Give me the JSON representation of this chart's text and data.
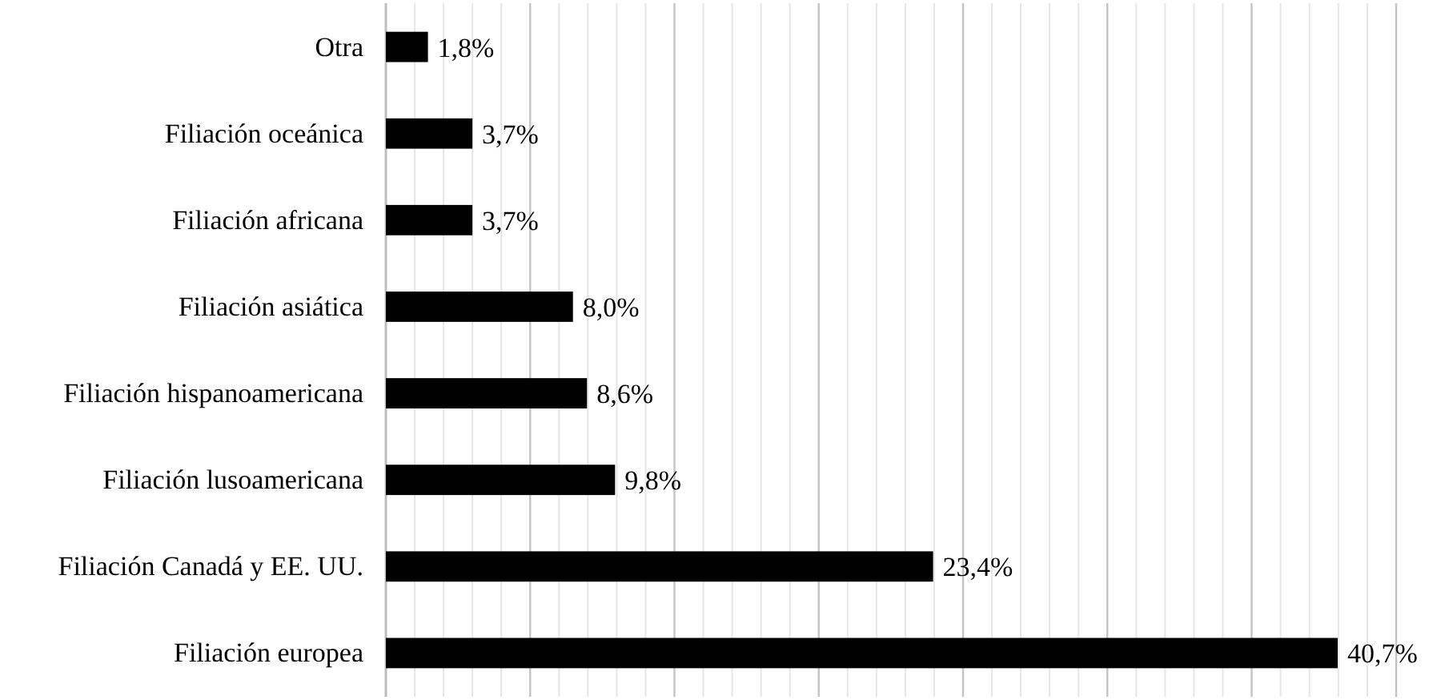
{
  "chart_data": {
    "type": "bar",
    "orientation": "horizontal",
    "categories": [
      "Otra",
      "Filiación oceánica",
      "Filiación africana",
      "Filiación asiática",
      "Filiación hispanoamericana",
      "Filiación lusoamericana",
      "Filiación Canadá y EE. UU.",
      "Filiación europea"
    ],
    "values": [
      1.8,
      3.7,
      3.7,
      8.0,
      8.6,
      9.8,
      23.4,
      40.7
    ],
    "value_labels": [
      "1,8%",
      "3,7%",
      "3,7%",
      "8,0%",
      "8,6%",
      "9,8%",
      "23,4%",
      "40,7%"
    ],
    "color": "#000000",
    "xlim": [
      0,
      43.2
    ],
    "xticks": [
      {
        "value": 6.17,
        "label": null
      },
      {
        "value": 12.34,
        "label": null
      },
      {
        "value": 18.51,
        "label": null
      },
      {
        "value": 24.68,
        "label": null
      },
      {
        "value": 30.85,
        "label": null
      },
      {
        "value": 37.02,
        "label": null
      },
      {
        "value": 43.2,
        "label": null
      }
    ],
    "tick_labels": "y",
    "grid": "x"
  }
}
